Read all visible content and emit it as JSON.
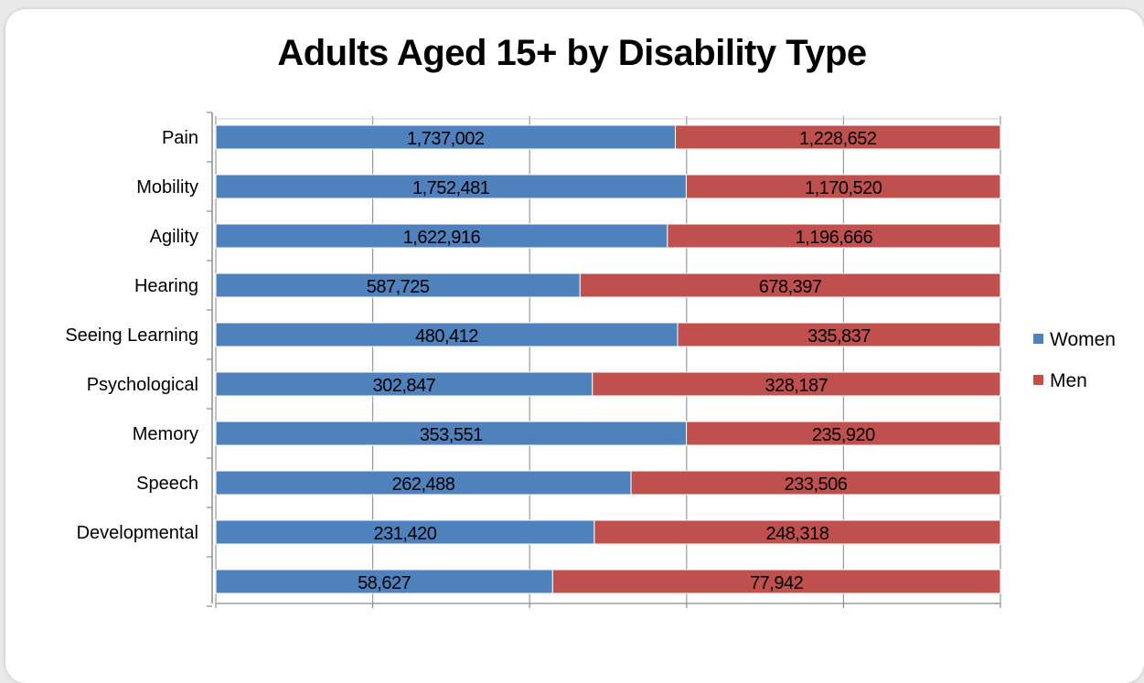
{
  "colors": {
    "women": "#4f81bd",
    "men": "#c0504d"
  },
  "chart_data": {
    "type": "bar",
    "orientation": "horizontal",
    "stacking": "percent",
    "title": "Adults Aged 15+ by Disability Type",
    "categories": [
      "Pain",
      "Mobility",
      "Agility",
      "Hearing",
      "Seeing  Learning",
      "Psychological",
      "Memory",
      "Speech",
      "Developmental",
      ""
    ],
    "series": [
      {
        "name": "Women",
        "values": [
          1737002,
          1752481,
          1622916,
          587725,
          480412,
          302847,
          353551,
          262488,
          231420,
          58627
        ],
        "labels": [
          "1,737,002",
          "1,752,481",
          "1,622,916",
          "587,725",
          "480,412",
          "302,847",
          "353,551",
          "262,488",
          "231,420",
          "58,627"
        ]
      },
      {
        "name": "Men",
        "values": [
          1228652,
          1170520,
          1196666,
          678397,
          335837,
          328187,
          235920,
          233506,
          248318,
          77942
        ],
        "labels": [
          "1,228,652",
          "1,170,520",
          "1,196,666",
          "678,397",
          "335,837",
          "328,187",
          "235,920",
          "233,506",
          "248,318",
          "77,942"
        ]
      }
    ],
    "xlim": [
      0,
      1
    ],
    "grid": true,
    "legend": "right"
  }
}
